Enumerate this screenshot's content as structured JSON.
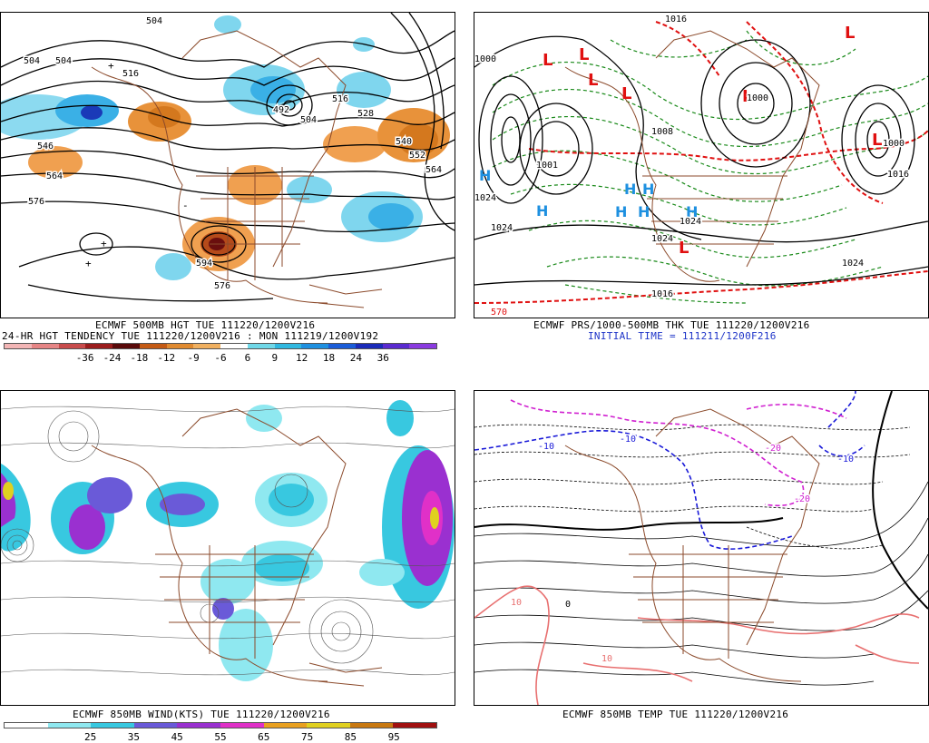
{
  "panels": {
    "p500": {
      "caption1": "ECMWF 500MB HGT TUE 111220/1200V216",
      "caption2": "24-HR HGT TENDENCY TUE 111220/1200V216 : MON 111219/1200V192",
      "scale_labels": [
        "-36",
        "-24",
        "-18",
        "-12",
        "-9",
        "-6",
        "6",
        "9",
        "12",
        "18",
        "24",
        "36"
      ],
      "scale_colors": [
        "#f3b6b6",
        "#e68585",
        "#c84b4b",
        "#9b1c1c",
        "#5a0a0a",
        "#c45a14",
        "#e08a30",
        "#f0b060",
        "#ffffff",
        "#70d8e8",
        "#30b8e0",
        "#1e90e0",
        "#1a5cd8",
        "#1a2ab8",
        "#5a2ad0",
        "#8a3ae0"
      ],
      "contour_labels": [
        "504",
        "504",
        "504",
        "516",
        "516",
        "546",
        "564",
        "576",
        "504",
        "528",
        "540",
        "552",
        "564",
        "576",
        "576",
        "504"
      ],
      "extrema": [
        "+",
        "+",
        "-",
        "-"
      ]
    },
    "pprs": {
      "caption1": "ECMWF PRS/1000-500MB THK TUE 111220/1200V216",
      "caption2": "INITIAL TIME = 111211/1200F216",
      "contour_labels": [
        "1016",
        "1000",
        "1024",
        "1024",
        "1024",
        "1016",
        "1024",
        "1008",
        "1016",
        "570",
        "1008",
        "1016",
        "1000",
        "1016",
        "1008"
      ],
      "lows": [
        "L",
        "L",
        "L",
        "L",
        "L",
        "L",
        "L",
        "L"
      ],
      "highs": [
        "H",
        "H",
        "H",
        "H",
        "H",
        "H",
        "H"
      ]
    },
    "p850w": {
      "caption1": "ECMWF 850MB WIND(KTS) TUE 111220/1200V216",
      "scale_labels": [
        "25",
        "35",
        "45",
        "55",
        "65",
        "75",
        "85",
        "95"
      ],
      "scale_colors": [
        "#ffffff",
        "#8fe8f0",
        "#38c8e0",
        "#6a5ad8",
        "#9a30d0",
        "#e030c8",
        "#e8a020",
        "#e0d020",
        "#c87810",
        "#a01010"
      ]
    },
    "p850t": {
      "caption1": "ECMWF 850MB TEMP TUE 111220/1200V216",
      "contour_labels": [
        "-10",
        "-10",
        "-10",
        "10",
        "10",
        "0",
        "-20",
        "20"
      ]
    }
  },
  "colors": {
    "coast": "#8b4a2b",
    "border": "#8b4a2b",
    "height": "#000000",
    "thickness_cold": "#1a8a1a",
    "thickness_warm": "#e01010",
    "low": "#e01010",
    "high": "#1e90e0",
    "temp_cold": "#1a1ad8",
    "temp_vcold": "#d020d0",
    "temp_warm": "#e87070"
  }
}
